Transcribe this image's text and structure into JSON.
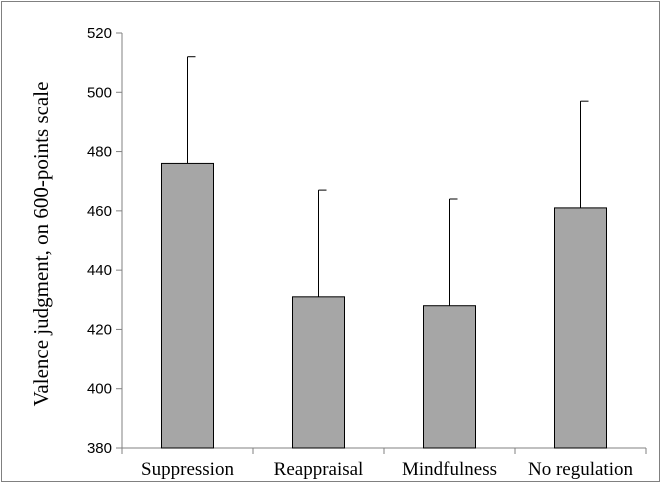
{
  "chart_data": {
    "type": "bar",
    "title": "",
    "xlabel": "",
    "ylabel": "Valence judgment, on 600-points scale",
    "ylim": [
      380,
      520
    ],
    "yticks": [
      380,
      400,
      420,
      440,
      460,
      480,
      500,
      520
    ],
    "grid": false,
    "legend": "none",
    "categories": [
      "Suppression",
      "Reappraisal",
      "Mindfulness",
      "No regulation"
    ],
    "values": [
      476,
      431,
      428,
      461
    ],
    "error_upper": [
      36,
      36,
      36,
      36
    ],
    "colors": {
      "bar_fill": "#a6a6a6",
      "bar_stroke": "#000000",
      "axis": "#808080",
      "error_bar": "#000000"
    }
  }
}
